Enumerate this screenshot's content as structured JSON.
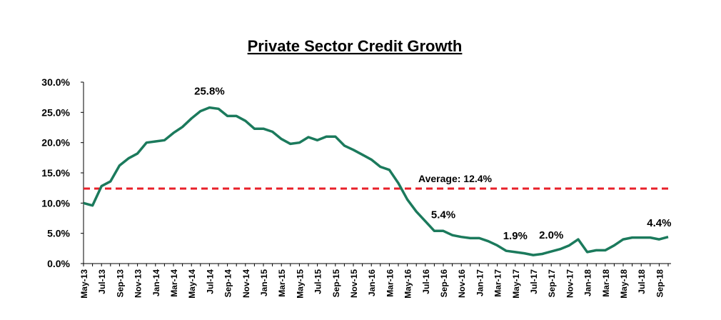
{
  "chart_data": {
    "type": "line",
    "title": "Private Sector Credit Growth",
    "categories": [
      "May-13",
      null,
      "Jul-13",
      null,
      "Sep-13",
      null,
      "Nov-13",
      null,
      "Jan-14",
      null,
      "Mar-14",
      null,
      "May-14",
      null,
      "Jul-14",
      null,
      "Sep-14",
      null,
      "Nov-14",
      null,
      "Jan-15",
      null,
      "Mar-15",
      null,
      "May-15",
      null,
      "Jul-15",
      null,
      "Sep-15",
      null,
      "Nov-15",
      null,
      "Jan-16",
      null,
      "Mar-16",
      null,
      "May-16",
      null,
      "Jul-16",
      null,
      "Sep-16",
      null,
      "Nov-16",
      null,
      "Jan-17",
      null,
      "Mar-17",
      null,
      "May-17",
      null,
      "Jul-17",
      null,
      "Sep-17",
      null,
      "Nov-17",
      null,
      "Jan-18",
      null,
      "Mar-18",
      null,
      "May-18",
      null,
      "Jul-18",
      null,
      "Sep-18",
      null
    ],
    "series": [
      {
        "name": "Private Sector Credit Growth",
        "color": "#1b7a5c",
        "values": [
          10.0,
          9.6,
          12.8,
          13.6,
          16.2,
          17.4,
          18.2,
          20.0,
          20.2,
          20.4,
          21.6,
          22.6,
          24.0,
          25.2,
          25.8,
          25.6,
          24.4,
          24.4,
          23.6,
          22.3,
          22.3,
          21.8,
          20.6,
          19.8,
          20.0,
          20.9,
          20.4,
          21.0,
          21.0,
          19.5,
          18.8,
          18.0,
          17.2,
          16.0,
          15.5,
          13.3,
          10.6,
          8.6,
          7.0,
          5.4,
          5.4,
          4.7,
          4.4,
          4.2,
          4.2,
          3.7,
          3.0,
          2.1,
          1.9,
          1.7,
          1.4,
          1.6,
          2.0,
          2.4,
          3.0,
          4.0,
          1.9,
          2.2,
          2.2,
          3.0,
          4.0,
          4.3,
          4.3,
          4.3,
          4.0,
          4.4
        ]
      }
    ],
    "ylim": [
      0,
      30
    ],
    "yticks": [
      {
        "value": 0,
        "label": "0.0%"
      },
      {
        "value": 5,
        "label": "5.0%"
      },
      {
        "value": 10,
        "label": "10.0%"
      },
      {
        "value": 15,
        "label": "15.0%"
      },
      {
        "value": 20,
        "label": "20.0%"
      },
      {
        "value": 25,
        "label": "25.0%"
      },
      {
        "value": 30,
        "label": "30.0%"
      }
    ],
    "average": {
      "value": 12.4,
      "label": "Average: 12.4%",
      "color": "#e8202a"
    },
    "annotations": [
      {
        "label": "25.8%",
        "x": "Jul-14"
      },
      {
        "label": "5.4%",
        "x": "Sep-16"
      },
      {
        "label": "1.9%",
        "x": "May-17"
      },
      {
        "label": "2.0%",
        "x": "Sep-17"
      },
      {
        "label": "4.4%",
        "x": "Sep-18"
      }
    ]
  }
}
